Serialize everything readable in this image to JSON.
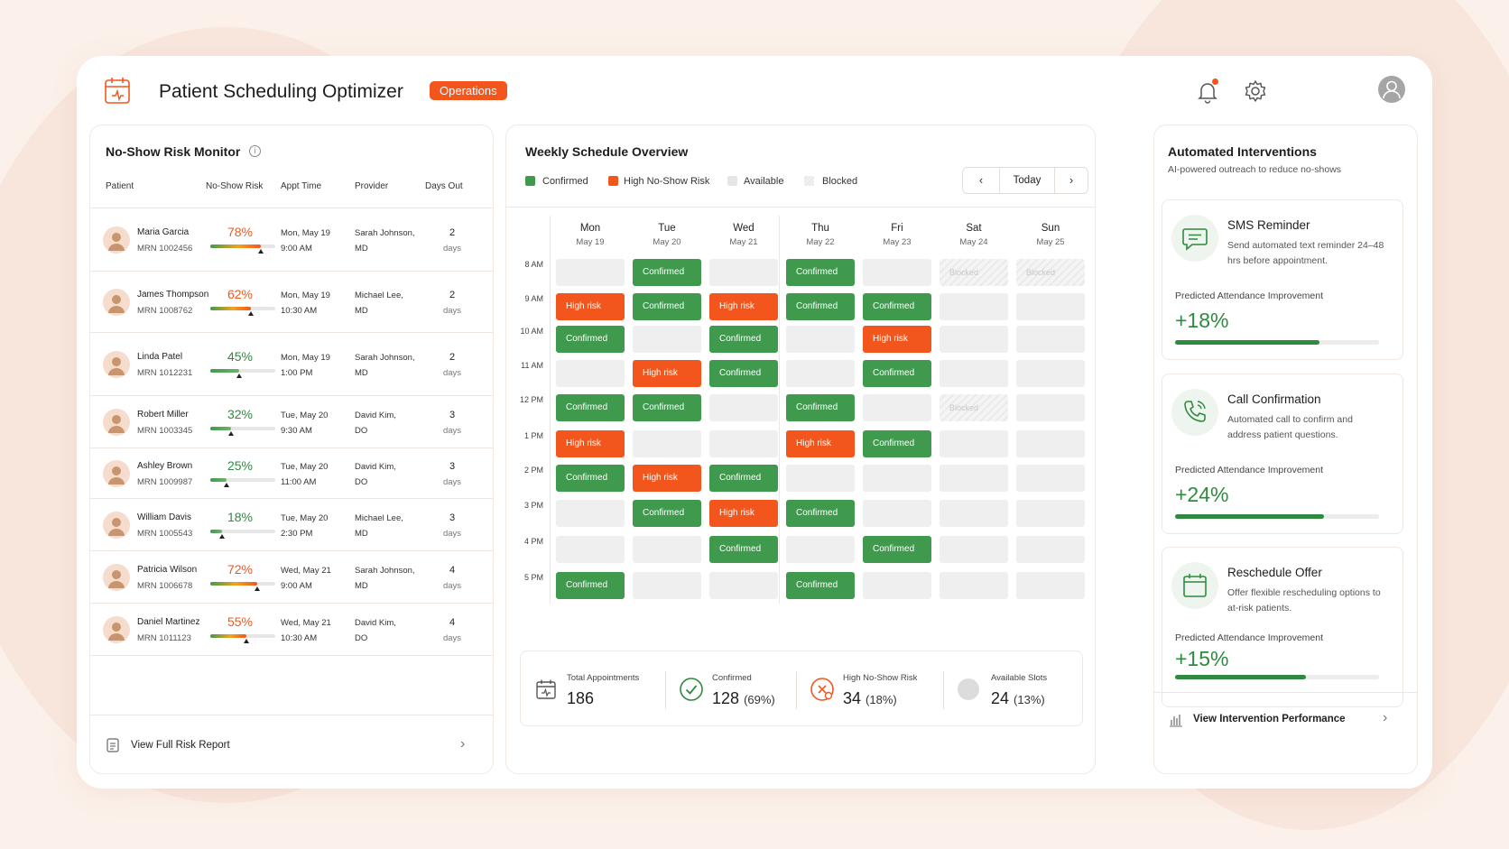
{
  "app": {
    "title": "Patient Scheduling Optimizer",
    "badge": "Operations"
  },
  "colors": {
    "accent": "#f2561d",
    "confirmed": "#3f9a4d",
    "high_risk": "#f2561d",
    "available": "#efefef"
  },
  "risk_monitor": {
    "title": "No-Show Risk Monitor",
    "columns": [
      "Patient",
      "No-Show Risk",
      "Appt Time",
      "Provider",
      "Days Out"
    ],
    "rows": [
      {
        "name": "Maria Garcia",
        "mrn": "MRN 1002456",
        "risk": "78%",
        "risk_value": 78,
        "level": "high",
        "day": "Mon, May 19",
        "time": "9:00 AM",
        "provider": "Sarah Johnson,",
        "cred": "MD",
        "days": "2",
        "days_label": "days"
      },
      {
        "name": "James Thompson",
        "mrn": "MRN 1008762",
        "risk": "62%",
        "risk_value": 62,
        "level": "high",
        "day": "Mon, May 19",
        "time": "10:30 AM",
        "provider": "Michael Lee,",
        "cred": "MD",
        "days": "2",
        "days_label": "days"
      },
      {
        "name": "Linda Patel",
        "mrn": "MRN 1012231",
        "risk": "45%",
        "risk_value": 45,
        "level": "low",
        "day": "Mon, May 19",
        "time": "1:00 PM",
        "provider": "Sarah Johnson,",
        "cred": "MD",
        "days": "2",
        "days_label": "days"
      },
      {
        "name": "Robert Miller",
        "mrn": "MRN 1003345",
        "risk": "32%",
        "risk_value": 32,
        "level": "low",
        "day": "Tue, May 20",
        "time": "9:30 AM",
        "provider": "David Kim,",
        "cred": "DO",
        "days": "3",
        "days_label": "days"
      },
      {
        "name": "Ashley Brown",
        "mrn": "MRN 1009987",
        "risk": "25%",
        "risk_value": 25,
        "level": "low",
        "day": "Tue, May 20",
        "time": "11:00 AM",
        "provider": "David Kim,",
        "cred": "DO",
        "days": "3",
        "days_label": "days"
      },
      {
        "name": "William Davis",
        "mrn": "MRN 1005543",
        "risk": "18%",
        "risk_value": 18,
        "level": "low",
        "day": "Tue, May 20",
        "time": "2:30 PM",
        "provider": "Michael Lee,",
        "cred": "MD",
        "days": "3",
        "days_label": "days"
      },
      {
        "name": "Patricia Wilson",
        "mrn": "MRN 1006678",
        "risk": "72%",
        "risk_value": 72,
        "level": "high",
        "day": "Wed, May 21",
        "time": "9:00 AM",
        "provider": "Sarah Johnson,",
        "cred": "MD",
        "days": "4",
        "days_label": "days"
      },
      {
        "name": "Daniel Martinez",
        "mrn": "MRN 1011123",
        "risk": "55%",
        "risk_value": 55,
        "level": "high",
        "day": "Wed, May 21",
        "time": "10:30 AM",
        "provider": "David Kim,",
        "cred": "DO",
        "days": "4",
        "days_label": "days"
      }
    ],
    "footer_link": "View Full Risk Report"
  },
  "schedule": {
    "title": "Weekly Schedule Overview",
    "legend": [
      "Confirmed",
      "High No-Show Risk",
      "Available",
      "Blocked"
    ],
    "today_label": "Today",
    "days": [
      {
        "name": "Mon",
        "date": "May 19"
      },
      {
        "name": "Tue",
        "date": "May 20"
      },
      {
        "name": "Wed",
        "date": "May 21"
      },
      {
        "name": "Thu",
        "date": "May 22"
      },
      {
        "name": "Fri",
        "date": "May 23"
      },
      {
        "name": "Sat",
        "date": "May 24"
      },
      {
        "name": "Sun",
        "date": "May 25"
      }
    ],
    "times": [
      "8 AM",
      "9 AM",
      "10 AM",
      "11 AM",
      "12 PM",
      "1 PM",
      "2 PM",
      "3 PM",
      "4 PM",
      "5 PM"
    ],
    "status_labels": {
      "C": "Confirmed",
      "H": "High risk",
      "A": "",
      "B": "Blocked"
    },
    "grid": [
      [
        "A",
        "C",
        "A",
        "C",
        "A",
        "B",
        "B"
      ],
      [
        "H",
        "C",
        "H",
        "C",
        "C",
        "A",
        "A"
      ],
      [
        "C",
        "A",
        "C",
        "A",
        "H",
        "A",
        "A"
      ],
      [
        "A",
        "H",
        "C",
        "A",
        "C",
        "A",
        "A"
      ],
      [
        "C",
        "C",
        "A",
        "C",
        "A",
        "B",
        "A"
      ],
      [
        "H",
        "A",
        "A",
        "H",
        "C",
        "A",
        "A"
      ],
      [
        "C",
        "H",
        "C",
        "A",
        "A",
        "A",
        "A"
      ],
      [
        "A",
        "C",
        "H",
        "C",
        "A",
        "A",
        "A"
      ],
      [
        "A",
        "A",
        "C",
        "A",
        "C",
        "A",
        "A"
      ],
      [
        "C",
        "A",
        "A",
        "C",
        "A",
        "A",
        "A"
      ]
    ],
    "summary": [
      {
        "label": "Total Appointments",
        "value": "186",
        "pct": ""
      },
      {
        "label": "Confirmed",
        "value": "128",
        "pct": "(69%)"
      },
      {
        "label": "High No-Show Risk",
        "value": "34",
        "pct": "(18%)"
      },
      {
        "label": "Available Slots",
        "value": "24",
        "pct": "(13%)"
      }
    ]
  },
  "interventions": {
    "title": "Automated Interventions",
    "subtitle": "AI-powered outreach to reduce no-shows",
    "cards": [
      {
        "title": "SMS Reminder",
        "desc": "Send automated text reminder 24–48 hrs before appointment.",
        "metric_label": "Predicted Attendance Improvement",
        "value": "+18%",
        "progress": 0.71
      },
      {
        "title": "Call Confirmation",
        "desc": "Automated call to confirm and address patient questions.",
        "metric_label": "Predicted Attendance Improvement",
        "value": "+24%",
        "progress": 0.73
      },
      {
        "title": "Reschedule Offer",
        "desc": "Offer flexible rescheduling options to at-risk patients.",
        "metric_label": "Predicted Attendance Improvement",
        "value": "+15%",
        "progress": 0.64
      }
    ],
    "footer_link": "View Intervention Performance"
  }
}
